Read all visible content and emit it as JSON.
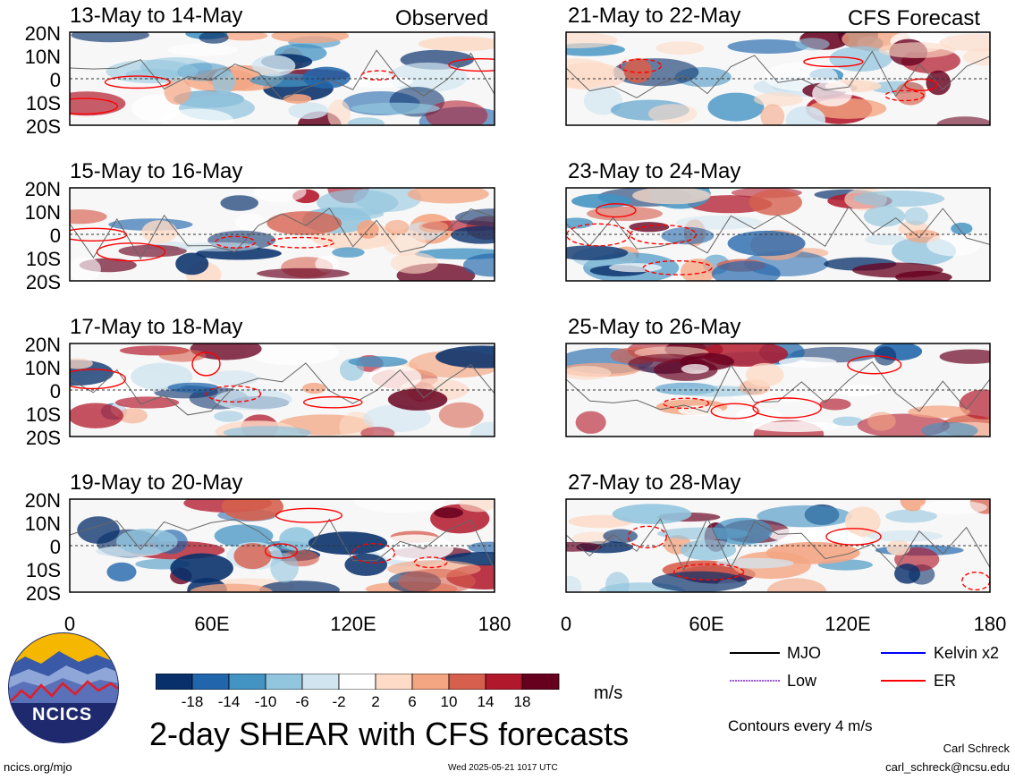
{
  "title": "2-day SHEAR with CFS forecasts",
  "columns": {
    "left": "Observed",
    "right": "CFS Forecast"
  },
  "panels_left": [
    "13-May to 14-May",
    "15-May to 16-May",
    "17-May to 18-May",
    "19-May to 20-May"
  ],
  "panels_right": [
    "21-May to 22-May",
    "23-May to 24-May",
    "25-May to 26-May",
    "27-May to 28-May"
  ],
  "lat_labels": [
    "20N",
    "10N",
    "0",
    "10S",
    "20S"
  ],
  "lon_labels": [
    "0",
    "60E",
    "120E",
    "180"
  ],
  "colorbar": {
    "unit": "m/s",
    "ticks": [
      "-18",
      "-14",
      "-10",
      "-6",
      "-2",
      "2",
      "6",
      "10",
      "14",
      "18"
    ],
    "colors": [
      "#08306b",
      "#2166ac",
      "#4393c3",
      "#92c5de",
      "#d1e5f0",
      "#ffffff",
      "#fddbc7",
      "#f4a582",
      "#d6604d",
      "#b2182b",
      "#67001f"
    ]
  },
  "legend": {
    "items": [
      {
        "label": "MJO",
        "color": "#000000"
      },
      {
        "label": "Kelvin x2",
        "color": "#0000ff"
      },
      {
        "label": "Low",
        "color": "#9955dd"
      },
      {
        "label": "ER",
        "color": "#ff0000"
      }
    ],
    "note": "Contours every 4 m/s"
  },
  "logo": {
    "text": "NCICS"
  },
  "footer": {
    "url": "ncics.org/mjo",
    "timestamp": "Wed 2025-05-21 1017 UTC",
    "author": "Carl Schreck",
    "email": "carl_schreck@ncsu.edu"
  }
}
